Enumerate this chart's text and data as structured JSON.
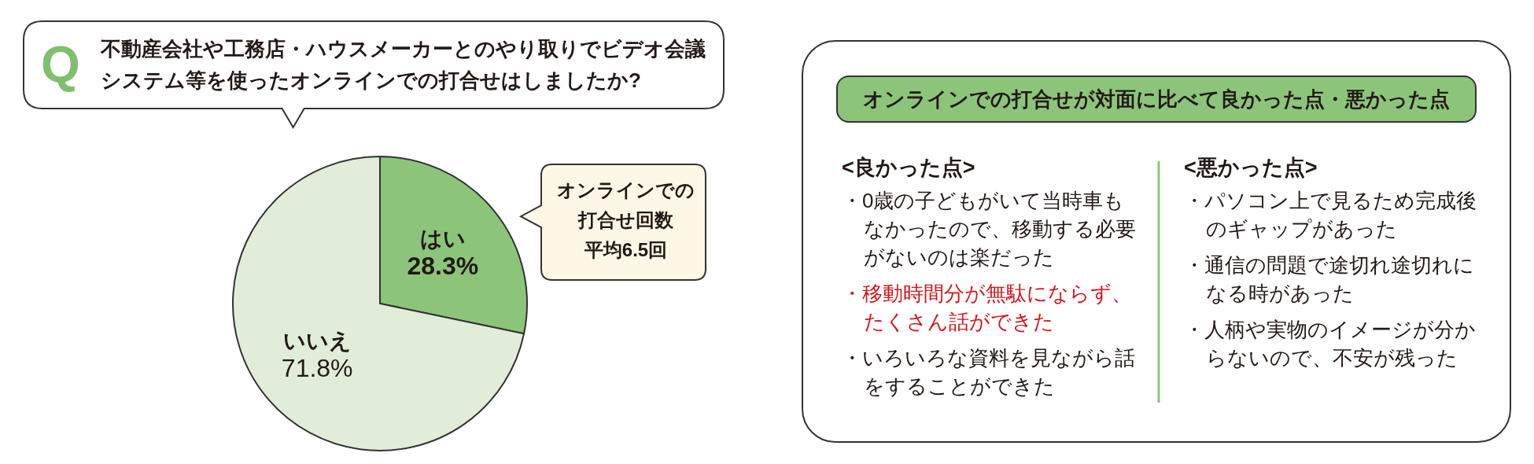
{
  "chart_data": [
    {
      "type": "pie",
      "title": "不動産会社や工務店・ハウスメーカーとのやり取りでビデオ会議システム等を使ったオンラインでの打合せはしましたか?",
      "categories": [
        "はい",
        "いいえ"
      ],
      "values": [
        28.3,
        71.8
      ],
      "colors": [
        "#8cc57a",
        "#e1edd9"
      ],
      "value_labels": [
        "28.3%",
        "71.8%"
      ],
      "annotations": [
        "Q",
        "オンラインでの打合せ回数",
        "平均6.5回"
      ]
    },
    {
      "type": "other",
      "title": "オンラインでの打合せが対面に比べて良かった点・悪かった点",
      "subtitle": "<良かった点>",
      "annotations": [
        "・0歳の子どもがいて当時車もなかったので、移動する必要がないのは楽だった",
        "・移動時間分が無駄にならず、たくさん話ができた",
        "・いろいろな資料を見ながら話をすることができた"
      ],
      "colors": [
        "#231815",
        "#d7141a",
        "#231815"
      ]
    },
    {
      "type": "other",
      "subtitle": "<悪かった点>",
      "annotations": [
        "・パソコン上で見るため完成後のギャップがあった",
        "・通信の問題で途切れ途切れになる時があった",
        "・人柄や実物のイメージが分からないので、不安が残った"
      ],
      "colors": [
        "#231815",
        "#231815",
        "#231815"
      ]
    }
  ]
}
